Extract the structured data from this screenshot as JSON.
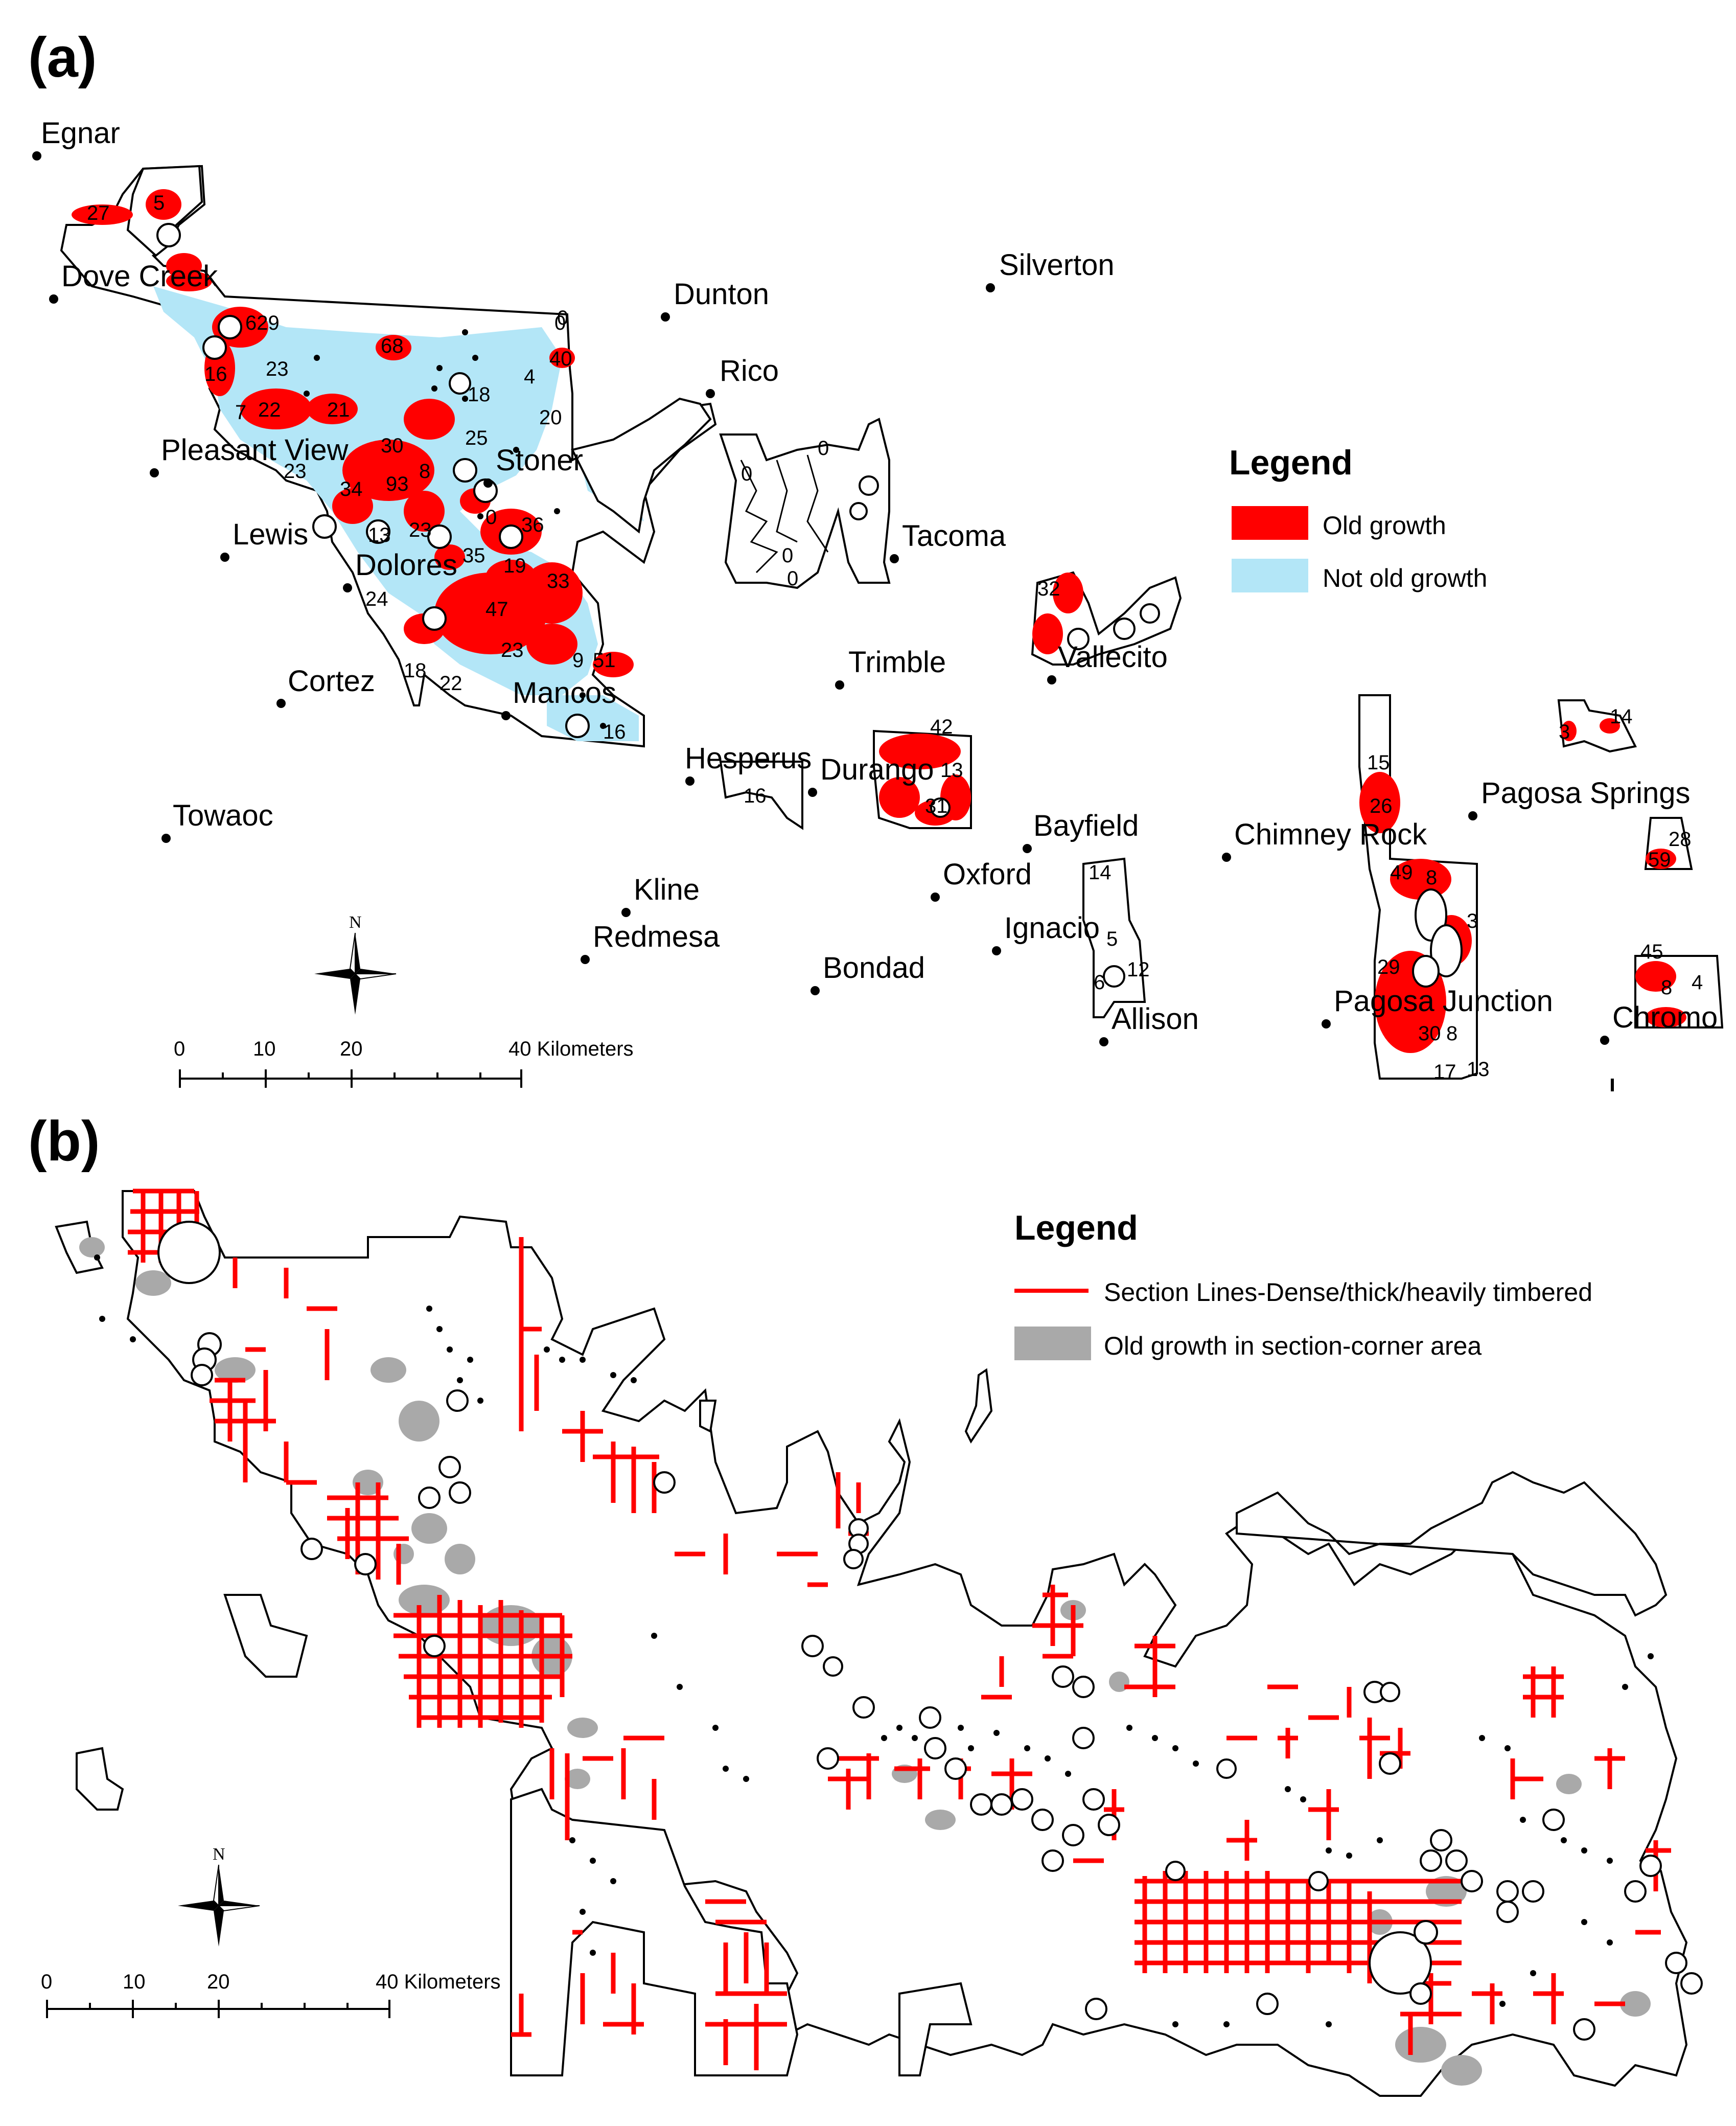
{
  "panel_a": {
    "label": "(a)",
    "legend": {
      "title": "Legend",
      "items": [
        {
          "label": "Old growth",
          "color": "#ff0000"
        },
        {
          "label": "Not old growth",
          "color": "#b3e6f7"
        }
      ]
    },
    "towns": [
      {
        "name": "Egnar"
      },
      {
        "name": "Dove Creek"
      },
      {
        "name": "Dunton"
      },
      {
        "name": "Silverton"
      },
      {
        "name": "Rico"
      },
      {
        "name": "Pleasant View"
      },
      {
        "name": "Stoner"
      },
      {
        "name": "Lewis"
      },
      {
        "name": "Dolores"
      },
      {
        "name": "Tacoma"
      },
      {
        "name": "Cortez"
      },
      {
        "name": "Mancos"
      },
      {
        "name": "Trimble"
      },
      {
        "name": "Vallecito"
      },
      {
        "name": "Hesperus"
      },
      {
        "name": "Durango"
      },
      {
        "name": "Towaoc"
      },
      {
        "name": "Bayfield"
      },
      {
        "name": "Chimney Rock"
      },
      {
        "name": "Pagosa Springs"
      },
      {
        "name": "Oxford"
      },
      {
        "name": "Kline"
      },
      {
        "name": "Redmesa"
      },
      {
        "name": "Ignacio"
      },
      {
        "name": "Bondad"
      },
      {
        "name": "Allison"
      },
      {
        "name": "Pagosa Junction"
      },
      {
        "name": "Chromo"
      }
    ],
    "plot_numbers": [
      "27",
      "5",
      "629",
      "16",
      "23",
      "7",
      "22",
      "21",
      "30",
      "68",
      "25",
      "18",
      "4",
      "20",
      "40",
      "0",
      "8",
      "93",
      "34",
      "23",
      "13",
      "23",
      "36",
      "35",
      "19",
      "24",
      "33",
      "47",
      "23",
      "22",
      "18",
      "9",
      "51",
      "16",
      "0",
      "0",
      "0",
      "32",
      "42",
      "13",
      "31",
      "16",
      "14",
      "15",
      "26",
      "49",
      "8",
      "3",
      "29",
      "30",
      "8",
      "17",
      "13",
      "14",
      "3",
      "59",
      "28",
      "45",
      "8",
      "4",
      "5",
      "12",
      "6",
      "0",
      "0",
      "0"
    ],
    "scale": {
      "ticks": [
        "0",
        "10",
        "20",
        "40 Kilometers"
      ]
    },
    "north": "N"
  },
  "panel_b": {
    "label": "(b)",
    "legend": {
      "title": "Legend",
      "items": [
        {
          "label": "Section Lines-Dense/thick/heavily timbered",
          "color": "#ff0000"
        },
        {
          "label": "Old growth in section-corner area",
          "color": "#a9a9a9"
        }
      ]
    },
    "scale": {
      "ticks": [
        "0",
        "10",
        "20",
        "40 Kilometers"
      ]
    },
    "north": "N"
  }
}
